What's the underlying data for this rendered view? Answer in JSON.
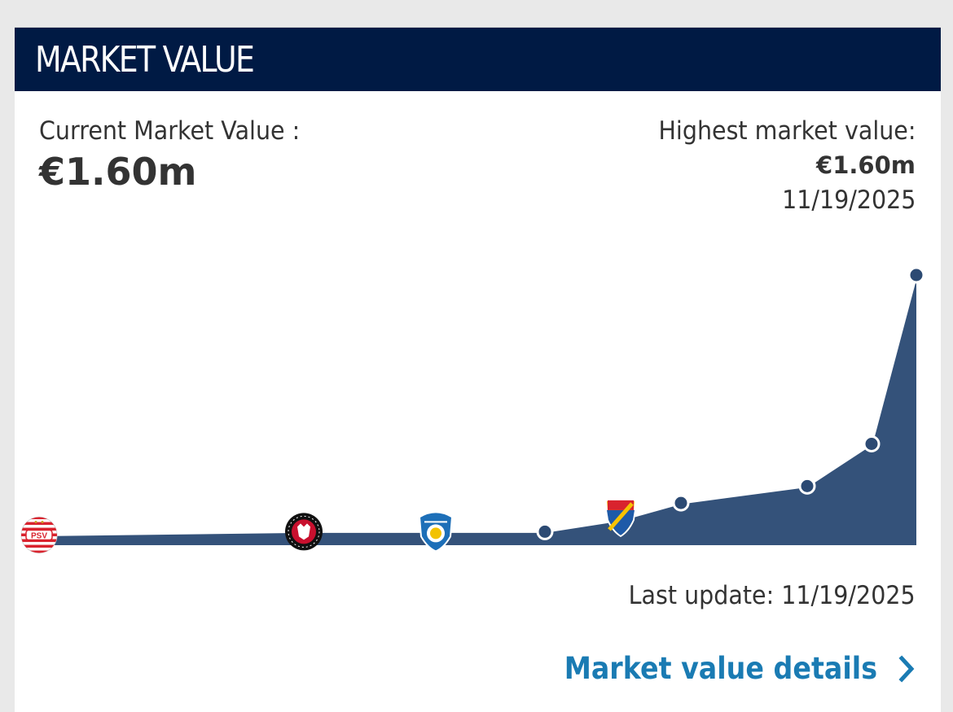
{
  "header": {
    "title": "MARKET VALUE"
  },
  "current": {
    "label": "Current Market Value :",
    "value": "€1.60m"
  },
  "highest": {
    "label": "Highest market value:",
    "value": "€1.60m",
    "date": "11/19/2025"
  },
  "chart_data": {
    "type": "area",
    "area_color": "#34527a",
    "line_color": "#ffffff",
    "marker_color": "#2c4a73",
    "points": [
      {
        "value": 0.06,
        "marker": "psv-crest-icon"
      },
      {
        "value": 0.08,
        "marker": "midtjylland-crest-icon"
      },
      {
        "value": 0.08,
        "marker": "esbjerg-crest-icon"
      },
      {
        "value": 0.08,
        "marker": "dot"
      },
      {
        "value": 0.15,
        "marker": "djurgarden-crest-icon"
      },
      {
        "value": 0.25,
        "marker": "dot"
      },
      {
        "value": 0.35,
        "marker": "dot"
      },
      {
        "value": 0.6,
        "marker": "dot"
      },
      {
        "value": 1.6,
        "marker": "dot"
      }
    ],
    "ylim": [
      0,
      1.6
    ]
  },
  "footer": {
    "last_update": "Last update: 11/19/2025",
    "details_label": "Market value details"
  },
  "colors": {
    "header_bg": "#001a44",
    "link": "#1a7bb3",
    "text": "#333333"
  }
}
